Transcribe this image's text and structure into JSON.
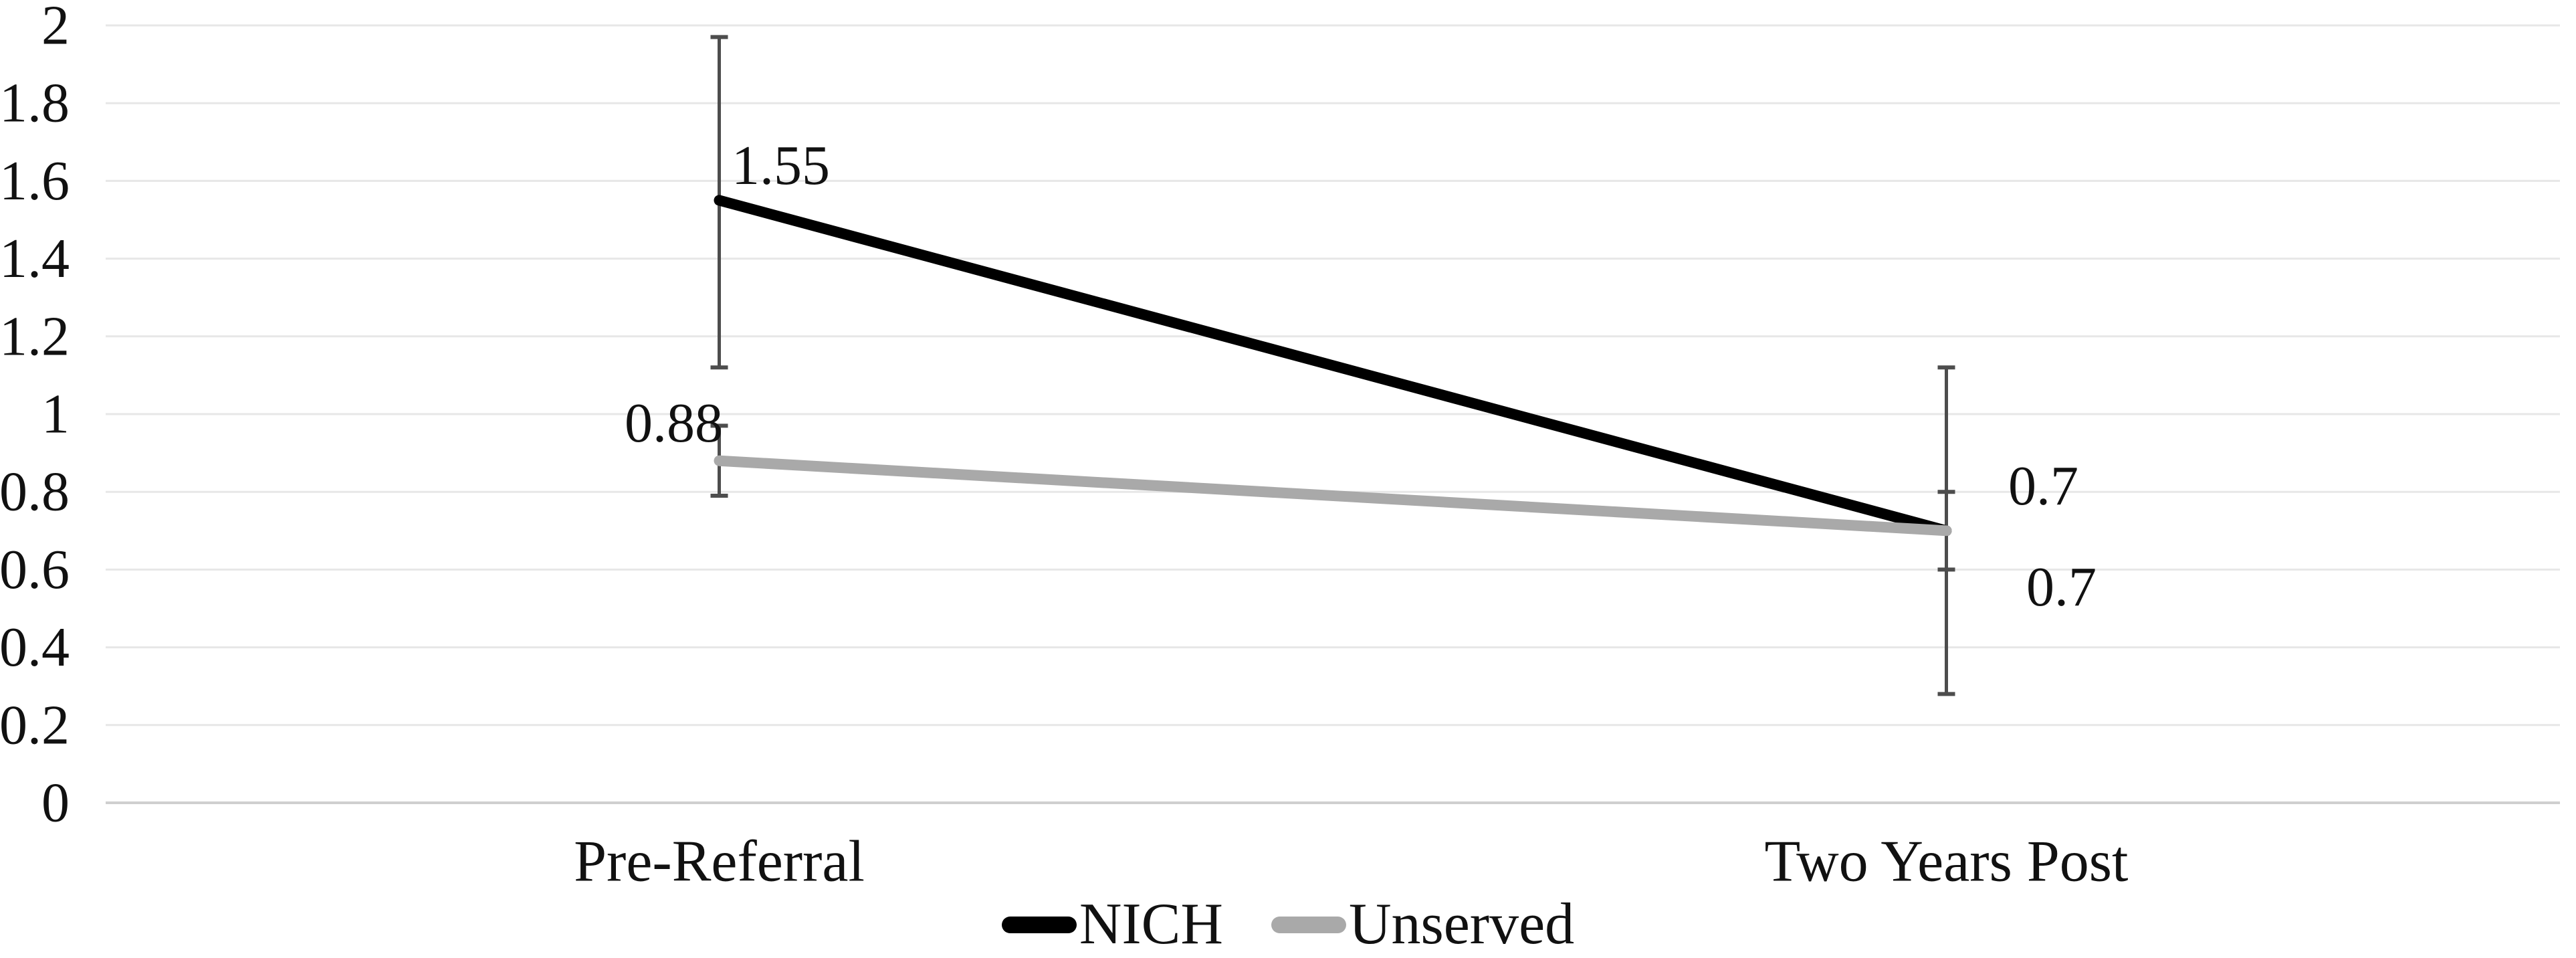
{
  "chart_data": {
    "type": "line",
    "title": "",
    "categories": [
      "Pre-Referral",
      "Two Years Post"
    ],
    "series": [
      {
        "name": "NICH",
        "color": "#000000",
        "values": [
          1.55,
          0.7
        ],
        "data_labels": [
          "1.55",
          "0.7"
        ],
        "error_bars": [
          {
            "low": 1.12,
            "high": 1.97
          },
          {
            "low": 0.28,
            "high": 1.12
          }
        ],
        "label_offsets": [
          [
            92,
            -52
          ],
          [
            145,
            -67
          ]
        ]
      },
      {
        "name": "Unserved",
        "color": "#a9a9a9",
        "values": [
          0.88,
          0.7
        ],
        "data_labels": [
          "0.88",
          "0.7"
        ],
        "error_bars": [
          {
            "low": 0.79,
            "high": 0.97
          },
          {
            "low": 0.6,
            "high": 0.8
          }
        ],
        "label_offsets": [
          [
            -68,
            -56
          ],
          [
            172,
            84
          ]
        ]
      }
    ],
    "ylim": [
      0,
      2
    ],
    "ytick_labels": [
      "0",
      "0.2",
      "0.4",
      "0.6",
      "0.8",
      "1",
      "1.2",
      "1.4",
      "1.6",
      "1.8",
      "2"
    ],
    "xlabel": "",
    "ylabel": "",
    "grid": true,
    "legend_position": "bottom",
    "colors": {
      "text": "#111111",
      "error_bar": "#4d4d4d",
      "gridline": "#e7e7e7",
      "axis_line": "#cfcfcf",
      "background": "#ffffff"
    }
  }
}
